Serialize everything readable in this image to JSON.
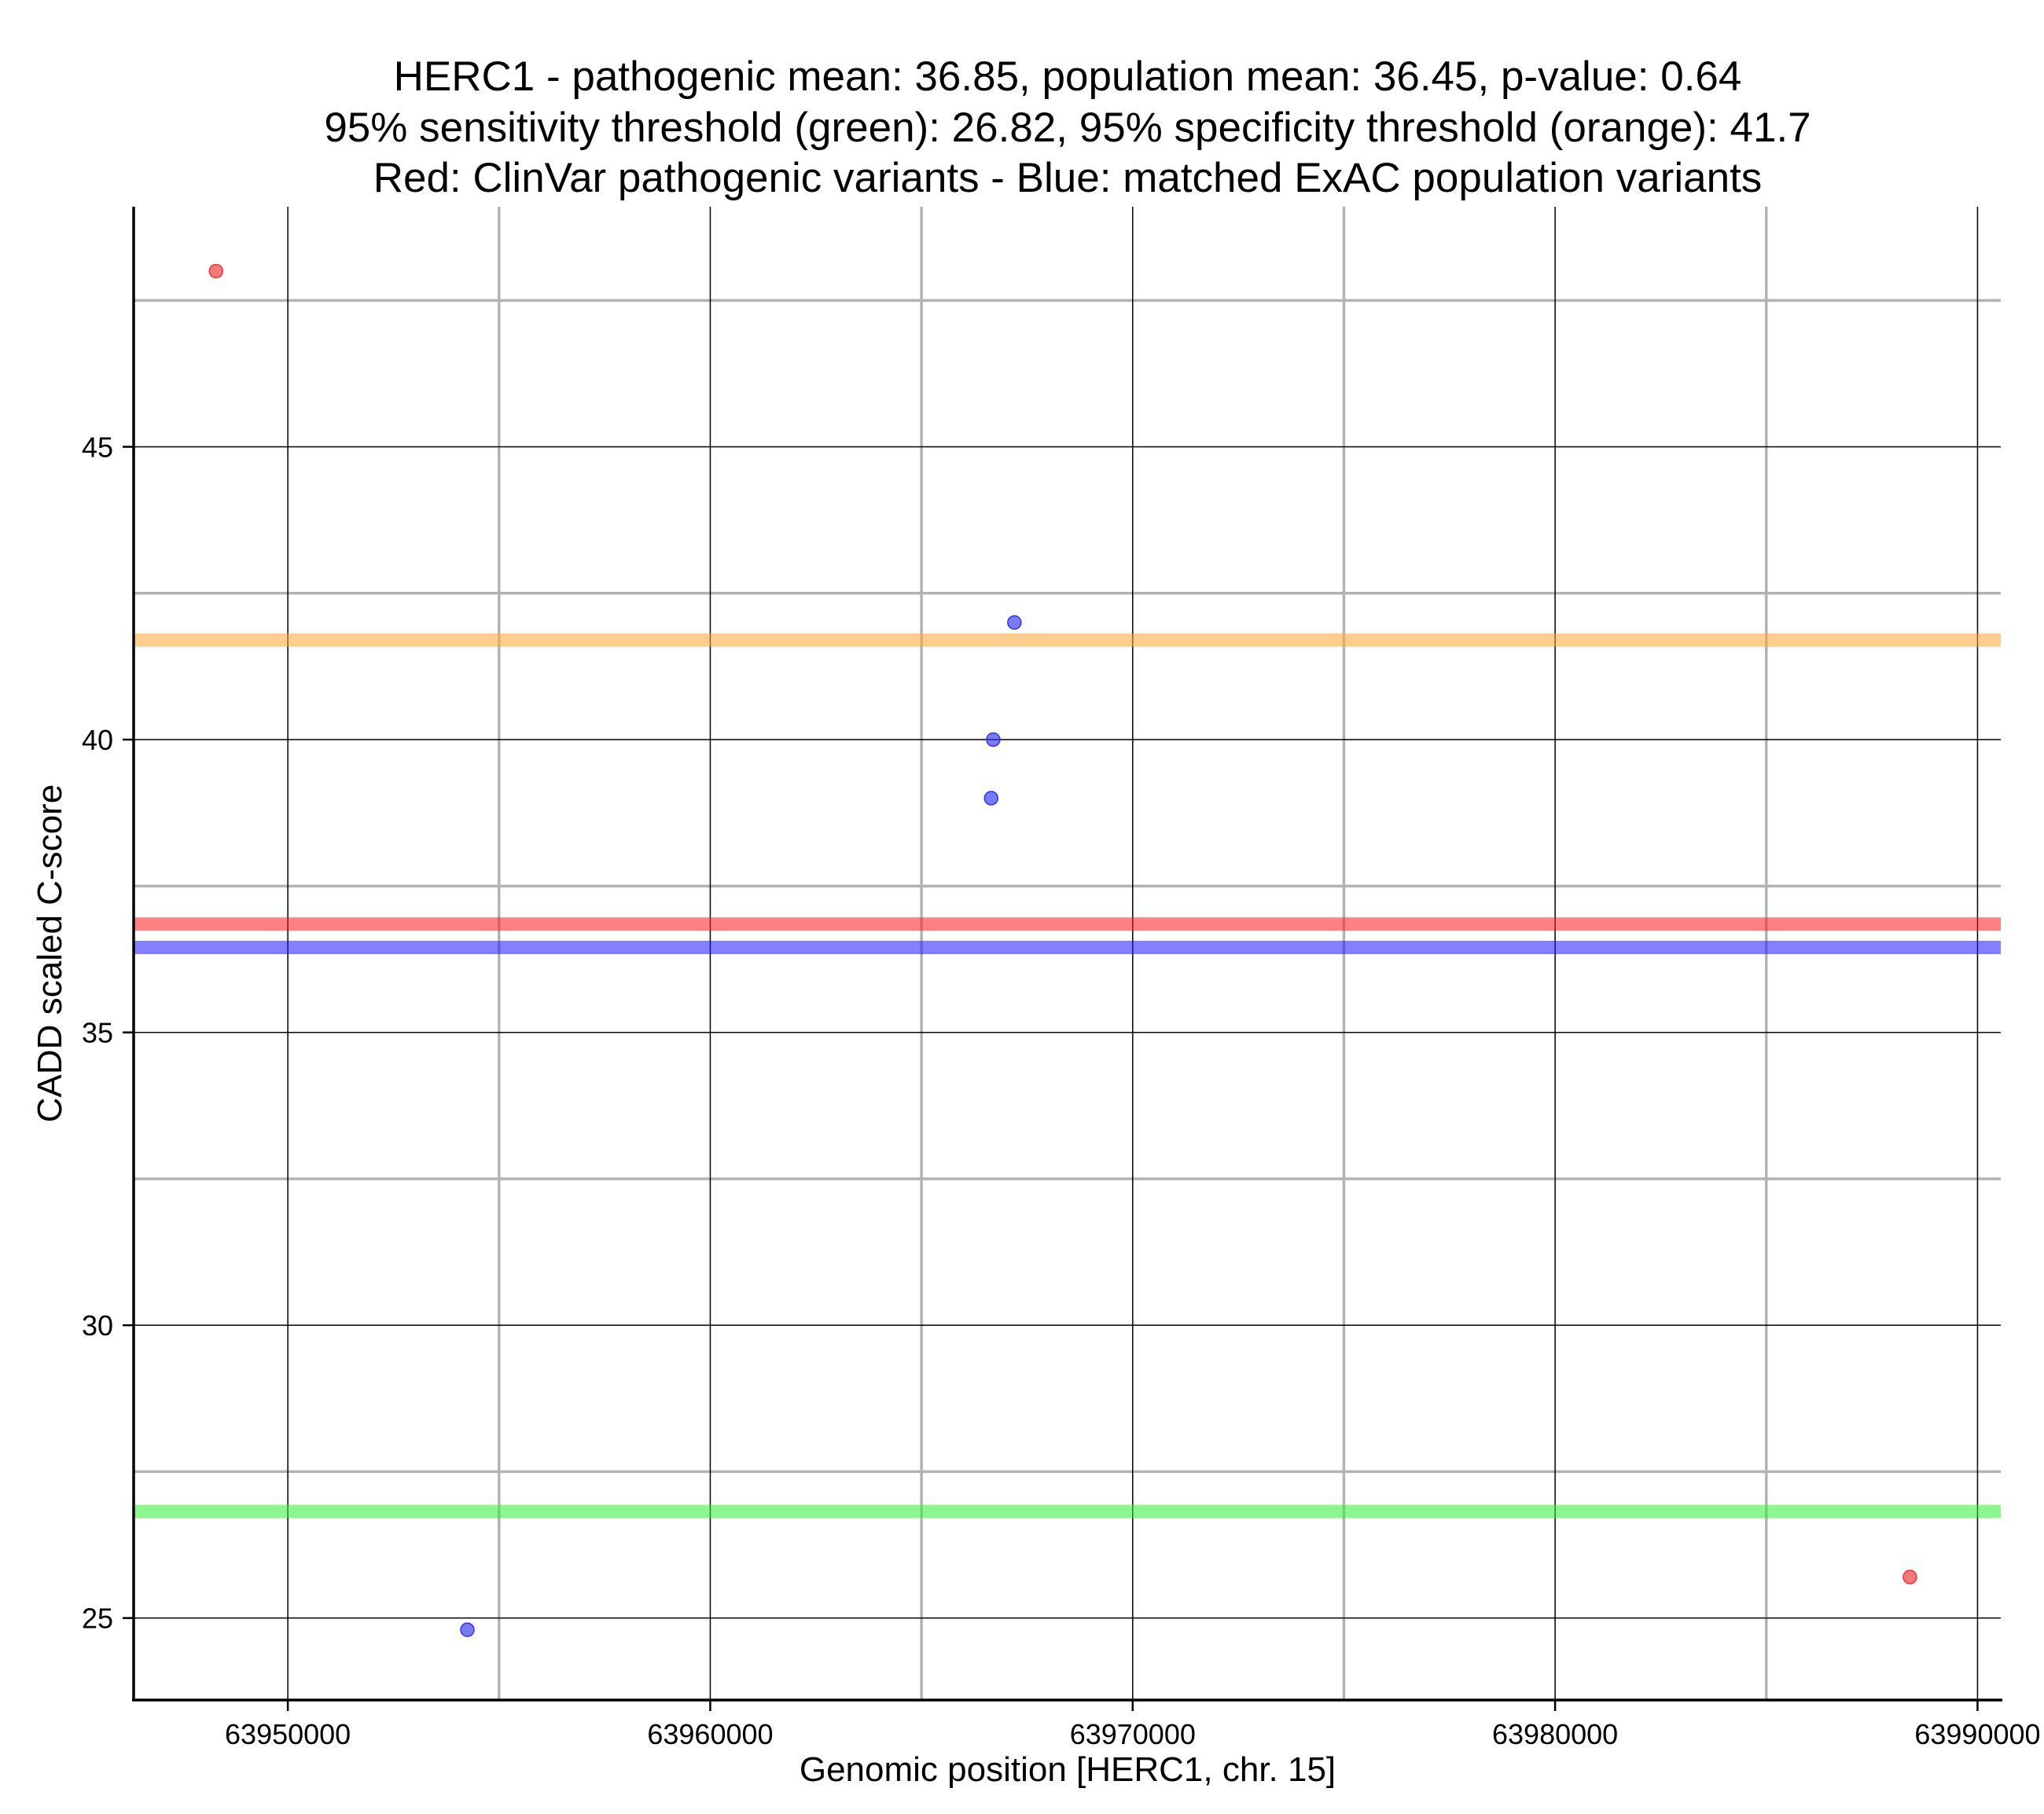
{
  "chart_data": {
    "type": "scatter",
    "title_lines": [
      "HERC1 - pathogenic mean: 36.85, population mean: 36.45, p-value: 0.64",
      "95% sensitivity threshold (green): 26.82, 95% specificity threshold (orange): 41.7",
      "Red: ClinVar pathogenic variants - Blue: matched ExAC population variants"
    ],
    "xlabel": "Genomic position [HERC1, chr. 15]",
    "ylabel": "CADD scaled C-score",
    "xlim": [
      63946350,
      63990550
    ],
    "ylim": [
      23.6,
      49.1
    ],
    "x_ticks": [
      63950000,
      63960000,
      63970000,
      63980000,
      63990000
    ],
    "x_tick_labels": [
      "63950000",
      "63960000",
      "63970000",
      "63980000",
      "63990000"
    ],
    "y_ticks": [
      25,
      30,
      35,
      40,
      45
    ],
    "y_tick_labels": [
      "25",
      "30",
      "35",
      "40",
      "45"
    ],
    "x_minor_grid": [
      63955000,
      63965000,
      63975000,
      63985000
    ],
    "y_minor_grid": [
      27.5,
      32.5,
      37.5,
      42.5,
      47.5
    ],
    "grid": true,
    "legend": "none",
    "series": [
      {
        "color": "#ee3333",
        "points": [
          {
            "x": 63948300,
            "y": 48.0
          },
          {
            "x": 63988400,
            "y": 25.7
          }
        ]
      },
      {
        "color": "#3333ee",
        "points": [
          {
            "x": 63954250,
            "y": 24.8
          },
          {
            "x": 63966650,
            "y": 39.0
          },
          {
            "x": 63966700,
            "y": 40.0
          },
          {
            "x": 63967200,
            "y": 42.0
          }
        ]
      }
    ],
    "reference_lines": [
      {
        "y": 41.7,
        "color": "#ffa533",
        "meaning": "95% specificity threshold"
      },
      {
        "y": 36.85,
        "color": "#ff1a1a",
        "meaning": "pathogenic mean"
      },
      {
        "y": 36.45,
        "color": "#1a1aff",
        "meaning": "population mean"
      },
      {
        "y": 26.82,
        "color": "#33ee33",
        "meaning": "95% sensitivity threshold"
      }
    ]
  }
}
